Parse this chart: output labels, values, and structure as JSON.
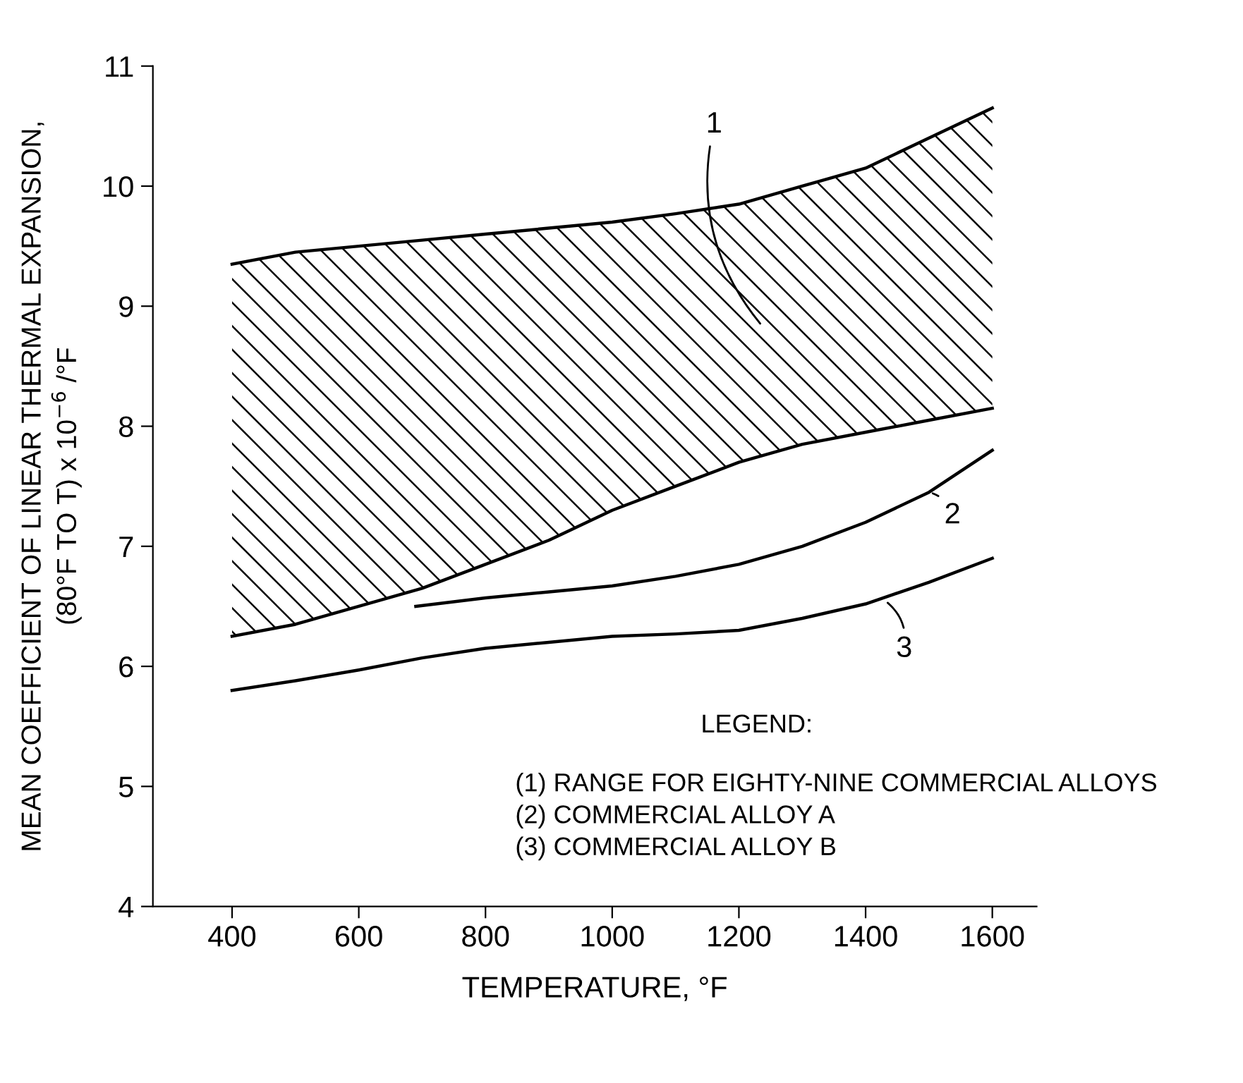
{
  "chart_data": {
    "type": "line",
    "xlabel": "TEMPERATURE, °F",
    "ylabel": "MEAN COEFFICIENT OF LINEAR THERMAL EXPANSION,\n(80°F TO T) x 10$^{−6}$ /°F",
    "xlim": [
      275,
      1670
    ],
    "ylim": [
      4,
      11
    ],
    "xticks": [
      400,
      600,
      800,
      1000,
      1200,
      1400,
      1600
    ],
    "yticks": [
      4,
      5,
      6,
      7,
      8,
      9,
      10,
      11
    ],
    "series": [
      {
        "color": "#000000",
        "x": [
          400,
          500,
          600,
          700,
          800,
          900,
          1000,
          1100,
          1200,
          1300,
          1400,
          1500,
          1600
        ],
        "values": [
          9.35,
          9.45,
          9.5,
          9.55,
          9.6,
          9.65,
          9.7,
          9.77,
          9.85,
          10.0,
          10.15,
          10.4,
          10.65
        ],
        "lower": [
          6.25,
          6.35,
          6.5,
          6.65,
          6.85,
          7.05,
          7.3,
          7.5,
          7.7,
          7.85,
          7.95,
          8.05,
          8.15
        ],
        "upper": [
          9.35,
          9.45,
          9.5,
          9.55,
          9.6,
          9.65,
          9.7,
          9.77,
          9.85,
          10.0,
          10.15,
          10.4,
          10.65
        ]
      },
      {
        "color": "#000000",
        "x": [
          400,
          500,
          600,
          700,
          800,
          900,
          1000,
          1100,
          1200,
          1300,
          1400,
          1500,
          1600
        ],
        "values": [
          6.25,
          6.35,
          6.5,
          6.65,
          6.85,
          7.05,
          7.3,
          7.5,
          7.7,
          7.85,
          7.95,
          8.05,
          8.15
        ]
      },
      {
        "color": "#000000",
        "x": [
          690,
          800,
          900,
          1000,
          1100,
          1200,
          1300,
          1400,
          1500,
          1600
        ],
        "values": [
          6.5,
          6.57,
          6.62,
          6.67,
          6.75,
          6.85,
          7.0,
          7.2,
          7.45,
          7.8
        ]
      },
      {
        "color": "#000000",
        "x": [
          400,
          500,
          600,
          700,
          800,
          900,
          1000,
          1100,
          1200,
          1300,
          1400,
          1500,
          1600
        ],
        "values": [
          5.8,
          5.88,
          5.97,
          6.07,
          6.15,
          6.2,
          6.25,
          6.27,
          6.3,
          6.4,
          6.52,
          6.7,
          6.9
        ]
      }
    ],
    "annotations": [
      "1",
      {
        "text": "2",
        "x": 1500,
        "y": 7.45
      },
      {
        "text": "3",
        "x": 1430,
        "y": 6.55
      },
      "LEGEND:",
      "(1) RANGE FOR EIGHTY-NINE COMMERCIAL ALLOYS",
      "(2) COMMERCIAL ALLOY A",
      "(3) COMMERCIAL ALLOY B"
    ]
  }
}
